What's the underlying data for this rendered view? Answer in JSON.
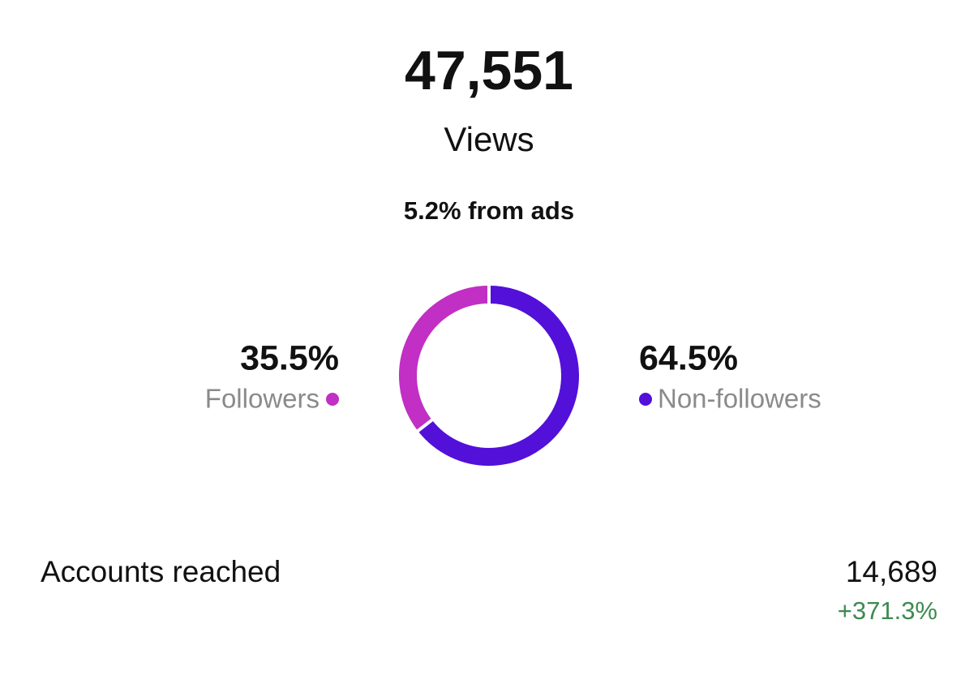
{
  "header": {
    "views": "47,551",
    "label": "Views",
    "ads": "5.2% from ads"
  },
  "chart_data": {
    "type": "pie",
    "categories": [
      "Followers",
      "Non-followers"
    ],
    "values": [
      35.5,
      64.5
    ],
    "value_labels": [
      "35.5%",
      "64.5%"
    ],
    "colors": [
      "#c12fc4",
      "#5210d9"
    ]
  },
  "accounts": {
    "label": "Accounts reached",
    "value": "14,689",
    "change": "+371.3%"
  }
}
